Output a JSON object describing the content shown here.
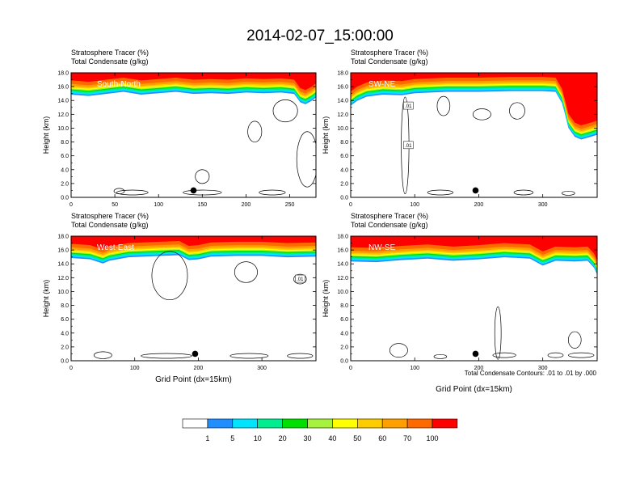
{
  "figure": {
    "title": "2014-02-07_15:00:00",
    "contour_note": "Total Condensate Contours: .01 to .01 by .000"
  },
  "chart_data": [
    {
      "type": "heatmap",
      "title": "Stratosphere Tracer   (%)",
      "subtitle": "Total Condensate   (g/kg)",
      "panel_label": "South-North",
      "xlabel": "",
      "ylabel": "Height (km)",
      "xlim": [
        0,
        280
      ],
      "ylim": [
        0,
        18
      ],
      "x_ticks": [
        "0",
        "50",
        "100",
        "150",
        "200",
        "250"
      ],
      "x_tick_values": [
        0,
        50,
        100,
        150,
        200,
        250
      ],
      "y_ticks": [
        "0.0",
        "2.0",
        "4.0",
        "6.0",
        "8.0",
        "10.0",
        "12.0",
        "14.0",
        "16.0",
        "18.0"
      ],
      "point_x": 140,
      "point_y": 1.0,
      "contour_labels": [],
      "tropopause_profile": [
        [
          0,
          15.4
        ],
        [
          20,
          15.2
        ],
        [
          40,
          15.5
        ],
        [
          60,
          15.8
        ],
        [
          80,
          15.4
        ],
        [
          100,
          15.6
        ],
        [
          120,
          15.8
        ],
        [
          140,
          15.5
        ],
        [
          160,
          15.6
        ],
        [
          180,
          15.5
        ],
        [
          200,
          15.7
        ],
        [
          220,
          15.6
        ],
        [
          240,
          15.7
        ],
        [
          255,
          15.5
        ],
        [
          262,
          14.3
        ],
        [
          268,
          14.0
        ],
        [
          275,
          14.5
        ],
        [
          280,
          15.0
        ]
      ]
    },
    {
      "type": "heatmap",
      "title": "Stratosphere Tracer   (%)",
      "subtitle": "Total Condensate   (g/kg)",
      "panel_label": "SW-NE",
      "xlabel": "",
      "ylabel": "Height (km)",
      "xlim": [
        0,
        385
      ],
      "ylim": [
        0,
        18
      ],
      "x_ticks": [
        "0",
        "100",
        "200",
        "300"
      ],
      "x_tick_values": [
        0,
        100,
        200,
        300
      ],
      "y_ticks": [
        "0.0",
        "2.0",
        "4.0",
        "6.0",
        "8.0",
        "10.0",
        "12.0",
        "14.0",
        "16.0",
        "18.0"
      ],
      "point_x": 195,
      "point_y": 1.0,
      "contour_labels": [
        ".01",
        ".01"
      ],
      "tropopause_profile": [
        [
          0,
          13.8
        ],
        [
          10,
          14.5
        ],
        [
          25,
          15.1
        ],
        [
          50,
          15.4
        ],
        [
          80,
          15.3
        ],
        [
          100,
          15.6
        ],
        [
          150,
          15.8
        ],
        [
          200,
          15.8
        ],
        [
          250,
          15.9
        ],
        [
          300,
          15.9
        ],
        [
          320,
          15.8
        ],
        [
          330,
          14.2
        ],
        [
          335,
          12.5
        ],
        [
          340,
          10.6
        ],
        [
          350,
          9.3
        ],
        [
          360,
          8.9
        ],
        [
          375,
          9.3
        ],
        [
          385,
          9.6
        ]
      ]
    },
    {
      "type": "heatmap",
      "title": "Stratosphere Tracer   (%)",
      "subtitle": "Total Condensate   (g/kg)",
      "panel_label": "West-East",
      "xlabel": "Grid Point (dx=15km)",
      "ylabel": "Height (km)",
      "xlim": [
        0,
        385
      ],
      "ylim": [
        0,
        18
      ],
      "x_ticks": [
        "0",
        "100",
        "200",
        "300"
      ],
      "x_tick_values": [
        0,
        100,
        200,
        300
      ],
      "y_ticks": [
        "0.0",
        "2.0",
        "4.0",
        "6.0",
        "8.0",
        "10.0",
        "12.0",
        "14.0",
        "16.0",
        "18.0"
      ],
      "point_x": 195,
      "point_y": 1.0,
      "contour_labels": [
        ".01"
      ],
      "tropopause_profile": [
        [
          0,
          15.4
        ],
        [
          30,
          15.2
        ],
        [
          50,
          14.6
        ],
        [
          60,
          15.0
        ],
        [
          90,
          15.5
        ],
        [
          140,
          15.7
        ],
        [
          170,
          15.8
        ],
        [
          185,
          15.1
        ],
        [
          200,
          15.2
        ],
        [
          220,
          15.6
        ],
        [
          260,
          15.7
        ],
        [
          300,
          15.7
        ],
        [
          340,
          15.5
        ],
        [
          385,
          15.6
        ]
      ]
    },
    {
      "type": "heatmap",
      "title": "Stratosphere Tracer   (%)",
      "subtitle": "Total Condensate   (g/kg)",
      "panel_label": "NW-SE",
      "xlabel": "Grid Point (dx=15km)",
      "ylabel": "Height (km)",
      "xlim": [
        0,
        385
      ],
      "ylim": [
        0,
        18
      ],
      "x_ticks": [
        "0",
        "100",
        "200",
        "300"
      ],
      "x_tick_values": [
        0,
        100,
        200,
        300
      ],
      "y_ticks": [
        "0.0",
        "2.0",
        "4.0",
        "6.0",
        "8.0",
        "10.0",
        "12.0",
        "14.0",
        "16.0",
        "18.0"
      ],
      "point_x": 195,
      "point_y": 1.0,
      "contour_labels": [],
      "tropopause_profile": [
        [
          0,
          14.9
        ],
        [
          40,
          14.8
        ],
        [
          80,
          15.1
        ],
        [
          120,
          15.3
        ],
        [
          160,
          15.0
        ],
        [
          200,
          15.2
        ],
        [
          240,
          15.5
        ],
        [
          280,
          15.3
        ],
        [
          300,
          14.3
        ],
        [
          320,
          15.0
        ],
        [
          350,
          14.9
        ],
        [
          370,
          15.0
        ],
        [
          380,
          14.0
        ],
        [
          385,
          13.0
        ]
      ]
    }
  ],
  "legend": {
    "labels": [
      "1",
      "5",
      "10",
      "20",
      "30",
      "40",
      "50",
      "60",
      "70",
      "100"
    ],
    "colors": [
      "#ffffff",
      "#1f8fff",
      "#00e4ff",
      "#00ee90",
      "#00e000",
      "#a6f23c",
      "#ffff00",
      "#ffcc00",
      "#ffa000",
      "#ff6a00",
      "#ff0000"
    ]
  }
}
